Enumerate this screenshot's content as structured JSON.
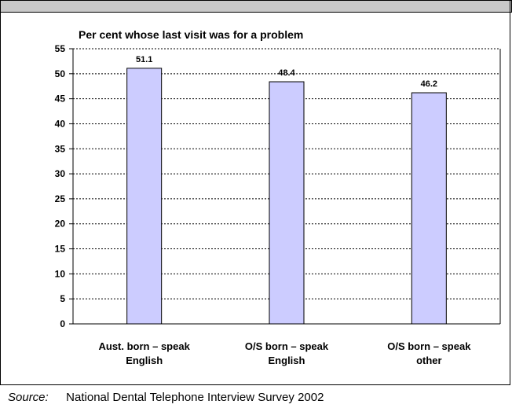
{
  "chart_data": {
    "type": "bar",
    "title": "Per cent whose last visit was for a problem",
    "categories": [
      [
        "Aust. born – speak",
        "English"
      ],
      [
        "O/S born – speak",
        "English"
      ],
      [
        "O/S born – speak",
        "other"
      ]
    ],
    "values": [
      51.1,
      48.4,
      46.2
    ],
    "data_labels": [
      "51.1",
      "48.4",
      "46.2"
    ],
    "ylim": [
      0,
      55
    ],
    "yticks": [
      0,
      5,
      10,
      15,
      20,
      25,
      30,
      35,
      40,
      45,
      50,
      55
    ],
    "grid": true,
    "legend": "none",
    "colors": {
      "bar_fill": "#ccccff",
      "bar_stroke": "#000000",
      "grid": "#000000"
    }
  },
  "source": {
    "label": "Source:",
    "text": "National Dental Telephone Interview Survey 2002"
  }
}
